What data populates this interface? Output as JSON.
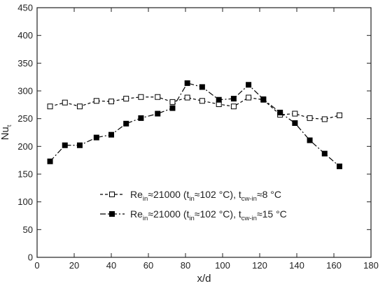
{
  "chart_data": {
    "type": "line",
    "title": "",
    "xlabel": "x/d",
    "ylabel": {
      "main": "Nu",
      "sub": "t"
    },
    "xlim": [
      0,
      180
    ],
    "ylim": [
      0,
      450
    ],
    "xticks": [
      0,
      20,
      40,
      60,
      80,
      100,
      120,
      140,
      160,
      180
    ],
    "yticks": [
      0,
      50,
      100,
      150,
      200,
      250,
      300,
      350,
      400,
      450
    ],
    "grid": false,
    "legend_position": "bottom-center",
    "series": [
      {
        "legend": {
          "re_main": "Re",
          "re_sub": "in",
          "approx1": "≈21000 (t",
          "t_sub": "in",
          "approx2": "≈102 °C), t",
          "tcw_sub": "cw-in",
          "approx3": "≈8 °C"
        },
        "marker": "open-square",
        "line_style": "short-dash",
        "color": "#000000",
        "x": [
          7,
          15,
          23,
          32,
          40,
          48,
          56,
          65,
          73,
          81,
          89,
          98,
          106,
          114,
          122,
          131,
          139,
          147,
          155,
          163
        ],
        "y": [
          272,
          279,
          272,
          282,
          281,
          286,
          289,
          289,
          280,
          288,
          282,
          276,
          272,
          288,
          284,
          257,
          259,
          251,
          249,
          256
        ]
      },
      {
        "legend": {
          "re_main": "Re",
          "re_sub": "in",
          "approx1": "≈21000 (t",
          "t_sub": "in",
          "approx2": "≈102 °C), t",
          "tcw_sub": "cw-in",
          "approx3": "≈15 °C"
        },
        "marker": "filled-square",
        "line_style": "dash-dot",
        "color": "#000000",
        "x": [
          7,
          15,
          23,
          32,
          40,
          48,
          56,
          65,
          73,
          81,
          89,
          98,
          106,
          114,
          122,
          131,
          139,
          147,
          155,
          163
        ],
        "y": [
          173,
          202,
          202,
          216,
          221,
          241,
          251,
          259,
          269,
          314,
          307,
          284,
          286,
          311,
          285,
          261,
          242,
          211,
          187,
          164
        ]
      }
    ]
  }
}
